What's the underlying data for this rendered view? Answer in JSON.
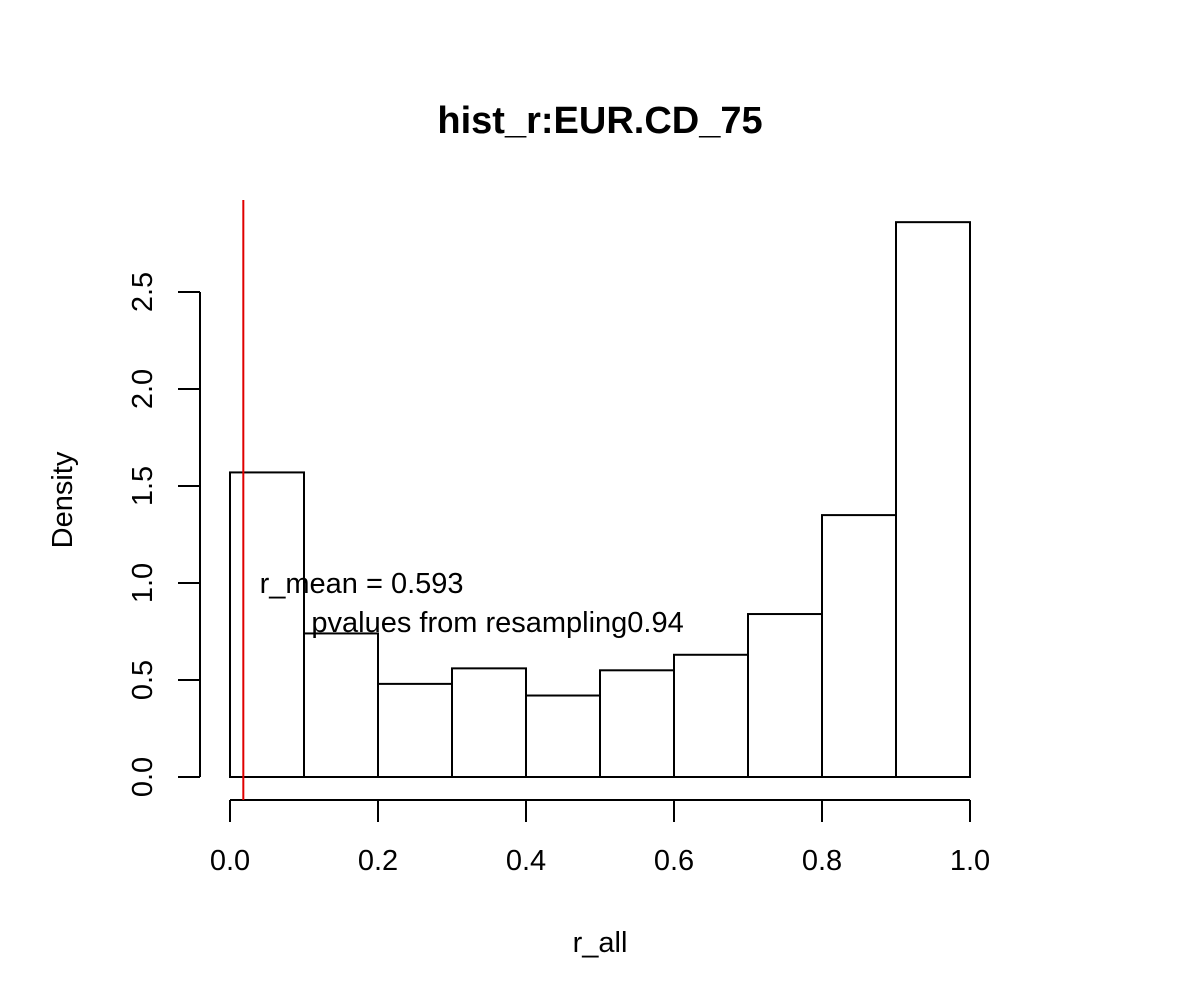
{
  "chart_data": {
    "type": "bar",
    "title": "hist_r:EUR.CD_75",
    "xlabel": "r_all",
    "ylabel": "Density",
    "bins": [
      {
        "start": 0.0,
        "end": 0.1,
        "density": 1.57
      },
      {
        "start": 0.1,
        "end": 0.2,
        "density": 0.74
      },
      {
        "start": 0.2,
        "end": 0.3,
        "density": 0.48
      },
      {
        "start": 0.3,
        "end": 0.4,
        "density": 0.56
      },
      {
        "start": 0.4,
        "end": 0.5,
        "density": 0.42
      },
      {
        "start": 0.5,
        "end": 0.6,
        "density": 0.55
      },
      {
        "start": 0.6,
        "end": 0.7,
        "density": 0.63
      },
      {
        "start": 0.7,
        "end": 0.8,
        "density": 0.84
      },
      {
        "start": 0.8,
        "end": 0.9,
        "density": 1.35
      },
      {
        "start": 0.9,
        "end": 1.0,
        "density": 2.86
      }
    ],
    "xlim": [
      0.0,
      1.0
    ],
    "ylim": [
      0.0,
      2.86
    ],
    "xticks": [
      "0.0",
      "0.2",
      "0.4",
      "0.6",
      "0.8",
      "1.0"
    ],
    "yticks": [
      "0.0",
      "0.5",
      "1.0",
      "1.5",
      "2.0",
      "2.5"
    ],
    "reference_line": {
      "x": 0.018,
      "color": "#e00000"
    },
    "annotations": [
      {
        "text": "r_mean = 0.593",
        "x": 0.04,
        "y": 1.0
      },
      {
        "text": "pvalues from resampling0.94",
        "x": 0.11,
        "y": 0.8
      }
    ],
    "bar_fill": "#ffffff",
    "bar_stroke": "#000000",
    "grid": false,
    "legend": "none"
  }
}
